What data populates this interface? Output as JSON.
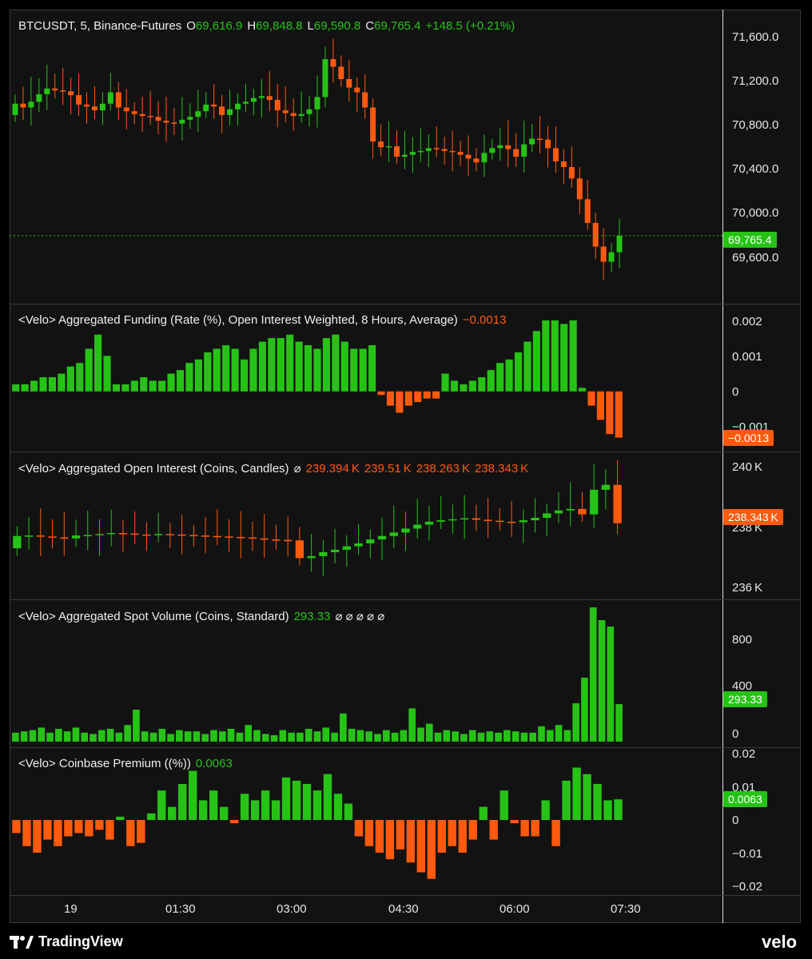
{
  "main": {
    "symbol": "BTCUSDT, 5, Binance-Futures",
    "o_label": "O",
    "o_value": "69,616.9",
    "h_label": "H",
    "h_value": "69,848.8",
    "l_label": "L",
    "l_value": "69,590.8",
    "c_label": "C",
    "c_value": "69,765.4",
    "change": "+148.5 (+0.21%)",
    "axis": [
      "71,600.0",
      "71,200.0",
      "70,800.0",
      "70,400.0",
      "70,000.0",
      "69,600.0"
    ],
    "last_price": "69,765.4"
  },
  "funding": {
    "title": "<Velo> Aggregated Funding (Rate (%), Open Interest Weighted, 8 Hours, Average)",
    "value": "−0.0013",
    "axis": [
      "0.002",
      "0.001",
      "0",
      "−0.001"
    ],
    "tag": "−0.0013"
  },
  "oi": {
    "title": "<Velo> Aggregated Open Interest (Coins, Candles)",
    "symbol": "⌀",
    "values": [
      "239.394 K",
      "239.51 K",
      "238.263 K",
      "238.343 K"
    ],
    "axis": [
      "240 K",
      "238 K",
      "236 K"
    ],
    "tag": "238.343 K"
  },
  "spot": {
    "title": "<Velo> Aggregated Spot Volume (Coins, Standard)",
    "value": "293.33",
    "symbols": "⌀  ⌀  ⌀  ⌀  ⌀",
    "axis": [
      "800",
      "400",
      "0"
    ],
    "tag": "293.33"
  },
  "premium": {
    "title": "<Velo> Coinbase Premium ((%))",
    "value": "0.0063",
    "axis": [
      "0.02",
      "0.01",
      "0",
      "−0.01",
      "−0.02"
    ],
    "tag": "0.0063"
  },
  "time_axis": [
    "19",
    "01:30",
    "03:00",
    "04:30",
    "06:00",
    "07:30"
  ],
  "brand": {
    "tradingview": "TradingView",
    "velo": "velo"
  },
  "colors": {
    "up": "#26c316",
    "down": "#ff5a0e"
  },
  "chart_data": [
    {
      "type": "candlestick",
      "title": "BTCUSDT, 5, Binance-Futures",
      "ylim": [
        69300,
        71850
      ],
      "close": [
        71160,
        71120,
        71180,
        71260,
        71320,
        71300,
        71290,
        71250,
        71150,
        71130,
        71090,
        71160,
        71280,
        71120,
        71080,
        71050,
        71030,
        71020,
        70980,
        70960,
        70950,
        70990,
        71020,
        71080,
        71150,
        71130,
        71040,
        71100,
        71160,
        71180,
        71220,
        71240,
        71200,
        71090,
        71060,
        71030,
        71050,
        71100,
        71230,
        71630,
        71550,
        71420,
        71330,
        71280,
        71120,
        70760,
        70700,
        70710,
        70600,
        70620,
        70650,
        70660,
        70690,
        70680,
        70660,
        70650,
        70620,
        70580,
        70540,
        70640,
        70690,
        70720,
        70680,
        70600,
        70730,
        70790,
        70780,
        70690,
        70550,
        70490,
        70370,
        70150,
        69900,
        69650,
        69490,
        69590,
        69765
      ]
    },
    {
      "type": "bar",
      "title": "<Velo> Aggregated Funding (Rate (%), Open Interest Weighted, 8 Hours, Average)",
      "ylim": [
        -0.0014,
        0.0022
      ],
      "values": [
        0.0002,
        0.0002,
        0.0003,
        0.0004,
        0.0004,
        0.0005,
        0.0007,
        0.0008,
        0.0012,
        0.0016,
        0.001,
        0.0002,
        0.0002,
        0.0003,
        0.0004,
        0.0003,
        0.0003,
        0.0005,
        0.0006,
        0.0008,
        0.0009,
        0.0011,
        0.0012,
        0.0013,
        0.0012,
        0.0009,
        0.0012,
        0.0014,
        0.0015,
        0.0015,
        0.0016,
        0.0014,
        0.0013,
        0.0012,
        0.0015,
        0.0016,
        0.0014,
        0.0012,
        0.0012,
        0.0013,
        -0.0001,
        -0.0004,
        -0.0006,
        -0.0004,
        -0.0003,
        -0.0002,
        -0.0002,
        0.0005,
        0.0003,
        0.0002,
        0.0003,
        0.0004,
        0.0006,
        0.0008,
        0.0009,
        0.0011,
        0.0014,
        0.0017,
        0.002,
        0.002,
        0.0019,
        0.002,
        0.0001,
        -0.0004,
        -0.0008,
        -0.0012,
        -0.0013
      ]
    },
    {
      "type": "candlestick",
      "title": "<Velo> Aggregated Open Interest (Coins, Candles)",
      "ylim": [
        235.5,
        240.9
      ],
      "close": [
        237.82,
        237.84,
        237.8,
        237.76,
        237.72,
        237.84,
        237.86,
        237.9,
        237.94,
        237.92,
        237.88,
        237.86,
        237.9,
        237.88,
        237.86,
        237.84,
        237.82,
        237.8,
        237.78,
        237.76,
        237.72,
        237.68,
        237.66,
        237.64,
        236.92,
        237.0,
        237.16,
        237.26,
        237.4,
        237.52,
        237.68,
        237.82,
        237.96,
        238.12,
        238.28,
        238.4,
        238.46,
        238.5,
        238.54,
        238.48,
        238.44,
        238.4,
        238.38,
        238.46,
        238.56,
        238.74,
        238.86,
        238.92,
        238.7,
        239.7,
        239.9,
        238.34
      ]
    },
    {
      "type": "bar",
      "title": "<Velo> Aggregated Spot Volume (Coins, Standard)",
      "ylim": [
        0,
        1050
      ],
      "values": [
        70,
        80,
        90,
        110,
        70,
        100,
        80,
        110,
        70,
        60,
        90,
        100,
        70,
        130,
        250,
        80,
        70,
        100,
        60,
        90,
        80,
        80,
        60,
        90,
        80,
        100,
        70,
        130,
        90,
        60,
        50,
        90,
        70,
        70,
        100,
        80,
        110,
        70,
        220,
        100,
        90,
        80,
        60,
        90,
        70,
        90,
        260,
        110,
        140,
        70,
        90,
        80,
        60,
        90,
        70,
        80,
        70,
        90,
        80,
        70,
        70,
        120,
        90,
        130,
        90,
        300,
        500,
        1050,
        950,
        900,
        293
      ]
    },
    {
      "type": "bar",
      "title": "<Velo> Coinbase Premium ((%))",
      "ylim": [
        -0.021,
        0.021
      ],
      "values": [
        -0.004,
        -0.008,
        -0.01,
        -0.006,
        -0.008,
        -0.005,
        -0.004,
        -0.005,
        -0.003,
        -0.006,
        0.001,
        -0.008,
        -0.007,
        0.002,
        0.009,
        0.004,
        0.011,
        0.015,
        0.006,
        0.009,
        0.004,
        -0.001,
        0.008,
        0.006,
        0.009,
        0.006,
        0.013,
        0.012,
        0.011,
        0.009,
        0.014,
        0.008,
        0.005,
        -0.005,
        -0.008,
        -0.01,
        -0.012,
        -0.009,
        -0.013,
        -0.016,
        -0.018,
        -0.01,
        -0.008,
        -0.01,
        -0.006,
        0.004,
        -0.006,
        0.009,
        -0.001,
        -0.005,
        -0.005,
        0.006,
        -0.008,
        0.012,
        0.016,
        0.014,
        0.011,
        0.006,
        0.0063
      ]
    }
  ]
}
